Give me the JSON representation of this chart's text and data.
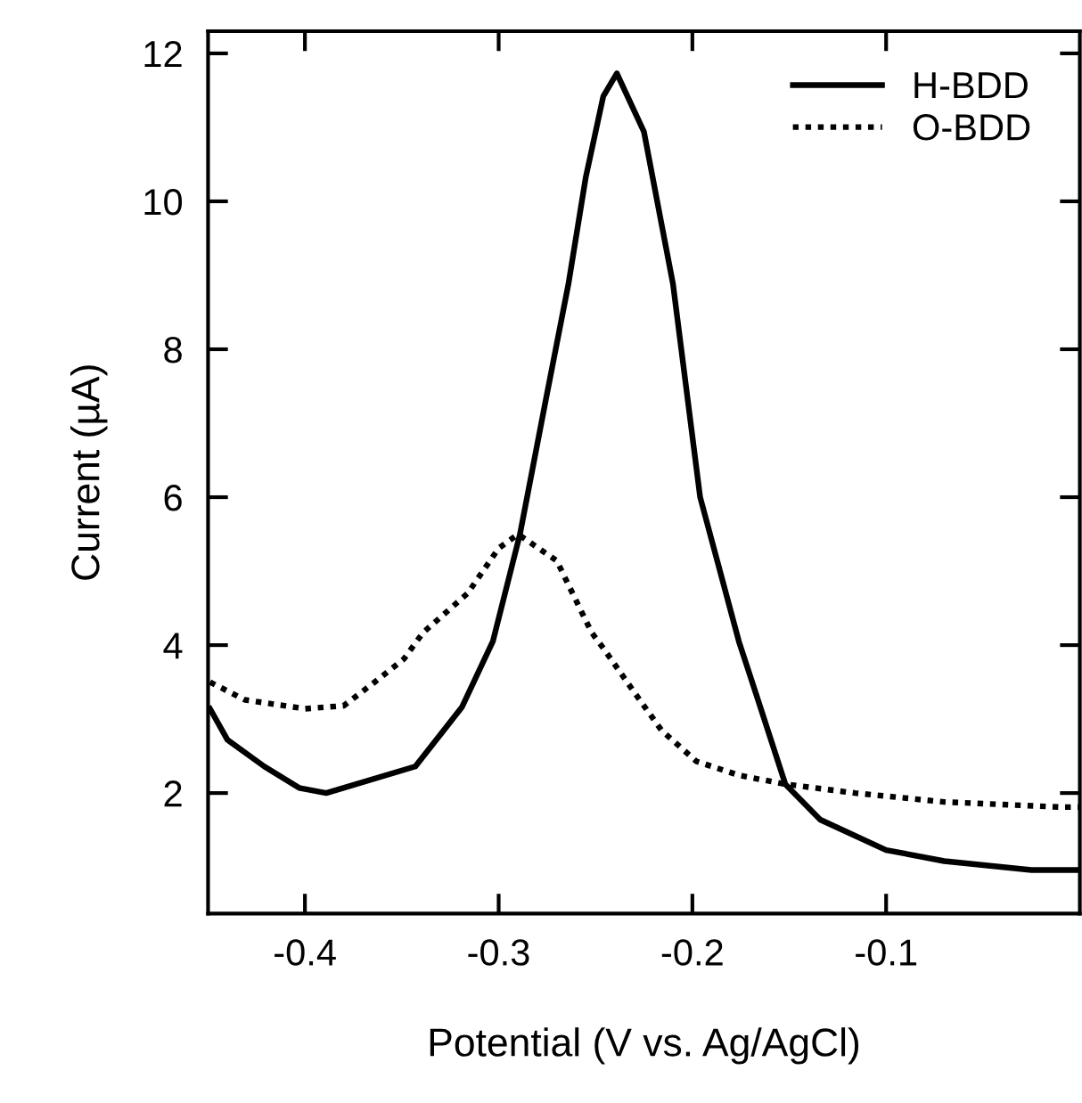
{
  "chart_data": {
    "type": "line",
    "xlabel": "Potential (V vs. Ag/AgCl)",
    "ylabel": "Current (µA)",
    "xlim": [
      -0.45,
      0.0
    ],
    "ylim": [
      0.37,
      12.3
    ],
    "xticks": [
      -0.4,
      -0.3,
      -0.2,
      -0.1
    ],
    "yticks": [
      2,
      4,
      6,
      8,
      10,
      12
    ],
    "grid": false,
    "legend": "top right",
    "marker": "none",
    "series": [
      {
        "name": "H-BDD",
        "color": "#000000",
        "line_style": "solid",
        "x": [
          -0.449,
          -0.44,
          -0.421,
          -0.403,
          -0.389,
          -0.343,
          -0.319,
          -0.303,
          -0.289,
          -0.276,
          -0.264,
          -0.255,
          -0.246,
          -0.239,
          -0.225,
          -0.21,
          -0.196,
          -0.176,
          -0.167,
          -0.152,
          -0.134,
          -0.1,
          -0.07,
          -0.025,
          0.0
        ],
        "values": [
          3.14,
          2.72,
          2.36,
          2.07,
          2.0,
          2.36,
          3.16,
          4.05,
          5.5,
          7.27,
          8.88,
          10.33,
          11.42,
          11.73,
          10.94,
          8.88,
          6.0,
          4.05,
          3.33,
          2.12,
          1.64,
          1.23,
          1.08,
          0.96,
          0.96
        ]
      },
      {
        "name": "O-BDD",
        "color": "#000000",
        "line_style": "dotted",
        "x": [
          -0.449,
          -0.431,
          -0.4,
          -0.38,
          -0.364,
          -0.349,
          -0.339,
          -0.316,
          -0.3,
          -0.29,
          -0.27,
          -0.252,
          -0.246,
          -0.231,
          -0.216,
          -0.198,
          -0.176,
          -0.152,
          -0.116,
          -0.07,
          -0.01,
          0.0
        ],
        "values": [
          3.5,
          3.26,
          3.14,
          3.18,
          3.5,
          3.81,
          4.17,
          4.7,
          5.31,
          5.5,
          5.14,
          4.17,
          3.96,
          3.4,
          2.85,
          2.43,
          2.24,
          2.12,
          2.0,
          1.88,
          1.81,
          1.81
        ]
      }
    ]
  }
}
